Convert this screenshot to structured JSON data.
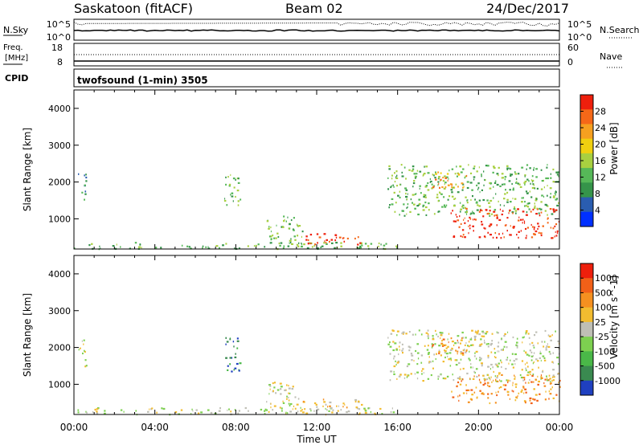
{
  "header": {
    "station": "Saskatoon (fitACF)",
    "beam": "Beam 02",
    "date": "24/Dec/2017"
  },
  "noise_panel": {
    "left_label": "N.Sky",
    "right_label": "N.Search",
    "left_ticks": [
      "10^5",
      "10^0"
    ],
    "right_ticks": [
      "10^5",
      "10^0"
    ]
  },
  "freq_panel": {
    "label_line1": "Freq.",
    "label_line2": "[MHz]",
    "left_ticks": [
      "18",
      "8"
    ],
    "right_label": "Nave",
    "right_ticks": [
      "60",
      "0"
    ]
  },
  "cpid": {
    "label": "CPID",
    "program": "twofsound (1-min) 3505"
  },
  "chart_data": [
    {
      "type": "heatmap",
      "title": "",
      "ylabel": "Slant Range [km]",
      "xlabel": "",
      "ylim": [
        180,
        4500
      ],
      "yticks": [
        "4000",
        "3000",
        "2000",
        "1000"
      ],
      "colorbar": {
        "label": "Power [dB]",
        "ticks": [
          "28",
          "24",
          "20",
          "16",
          "12",
          "8",
          "4"
        ],
        "colors": [
          "#0030ff",
          "#2a5db0",
          "#35944a",
          "#56b858",
          "#a8d040",
          "#f0d010",
          "#f6a020",
          "#f56818",
          "#ee1f0c"
        ]
      },
      "regions": [
        {
          "t0": 0.2,
          "t1": 0.6,
          "r0": 1500,
          "r1": 2300,
          "level": 2
        },
        {
          "t0": 0.0,
          "t1": 16.0,
          "r0": 200,
          "r1": 380,
          "level": 3
        },
        {
          "t0": 7.4,
          "t1": 8.2,
          "r0": 1350,
          "r1": 2300,
          "level": 3
        },
        {
          "t0": 9.5,
          "t1": 11.3,
          "r0": 300,
          "r1": 1100,
          "level": 3
        },
        {
          "t0": 11.3,
          "t1": 14.2,
          "r0": 320,
          "r1": 620,
          "level": 8
        },
        {
          "t0": 15.5,
          "t1": 24.0,
          "r0": 1100,
          "r1": 2500,
          "level": 3
        },
        {
          "t0": 18.6,
          "t1": 24.0,
          "r0": 500,
          "r1": 1300,
          "level": 8
        },
        {
          "t0": 17.6,
          "t1": 19.4,
          "r0": 1850,
          "r1": 2300,
          "level": 6
        }
      ]
    },
    {
      "type": "heatmap",
      "title": "",
      "ylabel": "Slant Range [km]",
      "xlabel": "Time UT",
      "xticks": [
        "00:00",
        "04:00",
        "08:00",
        "12:00",
        "16:00",
        "20:00",
        "00:00"
      ],
      "ylim": [
        180,
        4500
      ],
      "yticks": [
        "4000",
        "3000",
        "2000",
        "1000"
      ],
      "colorbar": {
        "label": "Velocity [m s^-1]",
        "ticks": [
          "1000",
          "500",
          "100",
          "25",
          "-25",
          "-100",
          "-500",
          "-1000"
        ],
        "colors": [
          "#1f40c0",
          "#3a8a50",
          "#4ab848",
          "#7dd050",
          "#bfbfb5",
          "#f2bc30",
          "#f59020",
          "#f26018",
          "#ee1f0c"
        ]
      },
      "regions": [
        {
          "t0": 0.2,
          "t1": 0.6,
          "r0": 1500,
          "r1": 2300,
          "level": 4
        },
        {
          "t0": 0.0,
          "t1": 16.0,
          "r0": 200,
          "r1": 380,
          "level": 4
        },
        {
          "t0": 7.4,
          "t1": 8.2,
          "r0": 1350,
          "r1": 2300,
          "level": 1
        },
        {
          "t0": 9.5,
          "t1": 11.3,
          "r0": 300,
          "r1": 1100,
          "level": 4
        },
        {
          "t0": 11.3,
          "t1": 14.2,
          "r0": 320,
          "r1": 620,
          "level": 5
        },
        {
          "t0": 15.5,
          "t1": 24.0,
          "r0": 1100,
          "r1": 2500,
          "level": 4
        },
        {
          "t0": 18.6,
          "t1": 24.0,
          "r0": 500,
          "r1": 1300,
          "level": 6
        },
        {
          "t0": 17.6,
          "t1": 19.4,
          "r0": 1850,
          "r1": 2300,
          "level": 6
        }
      ]
    }
  ]
}
